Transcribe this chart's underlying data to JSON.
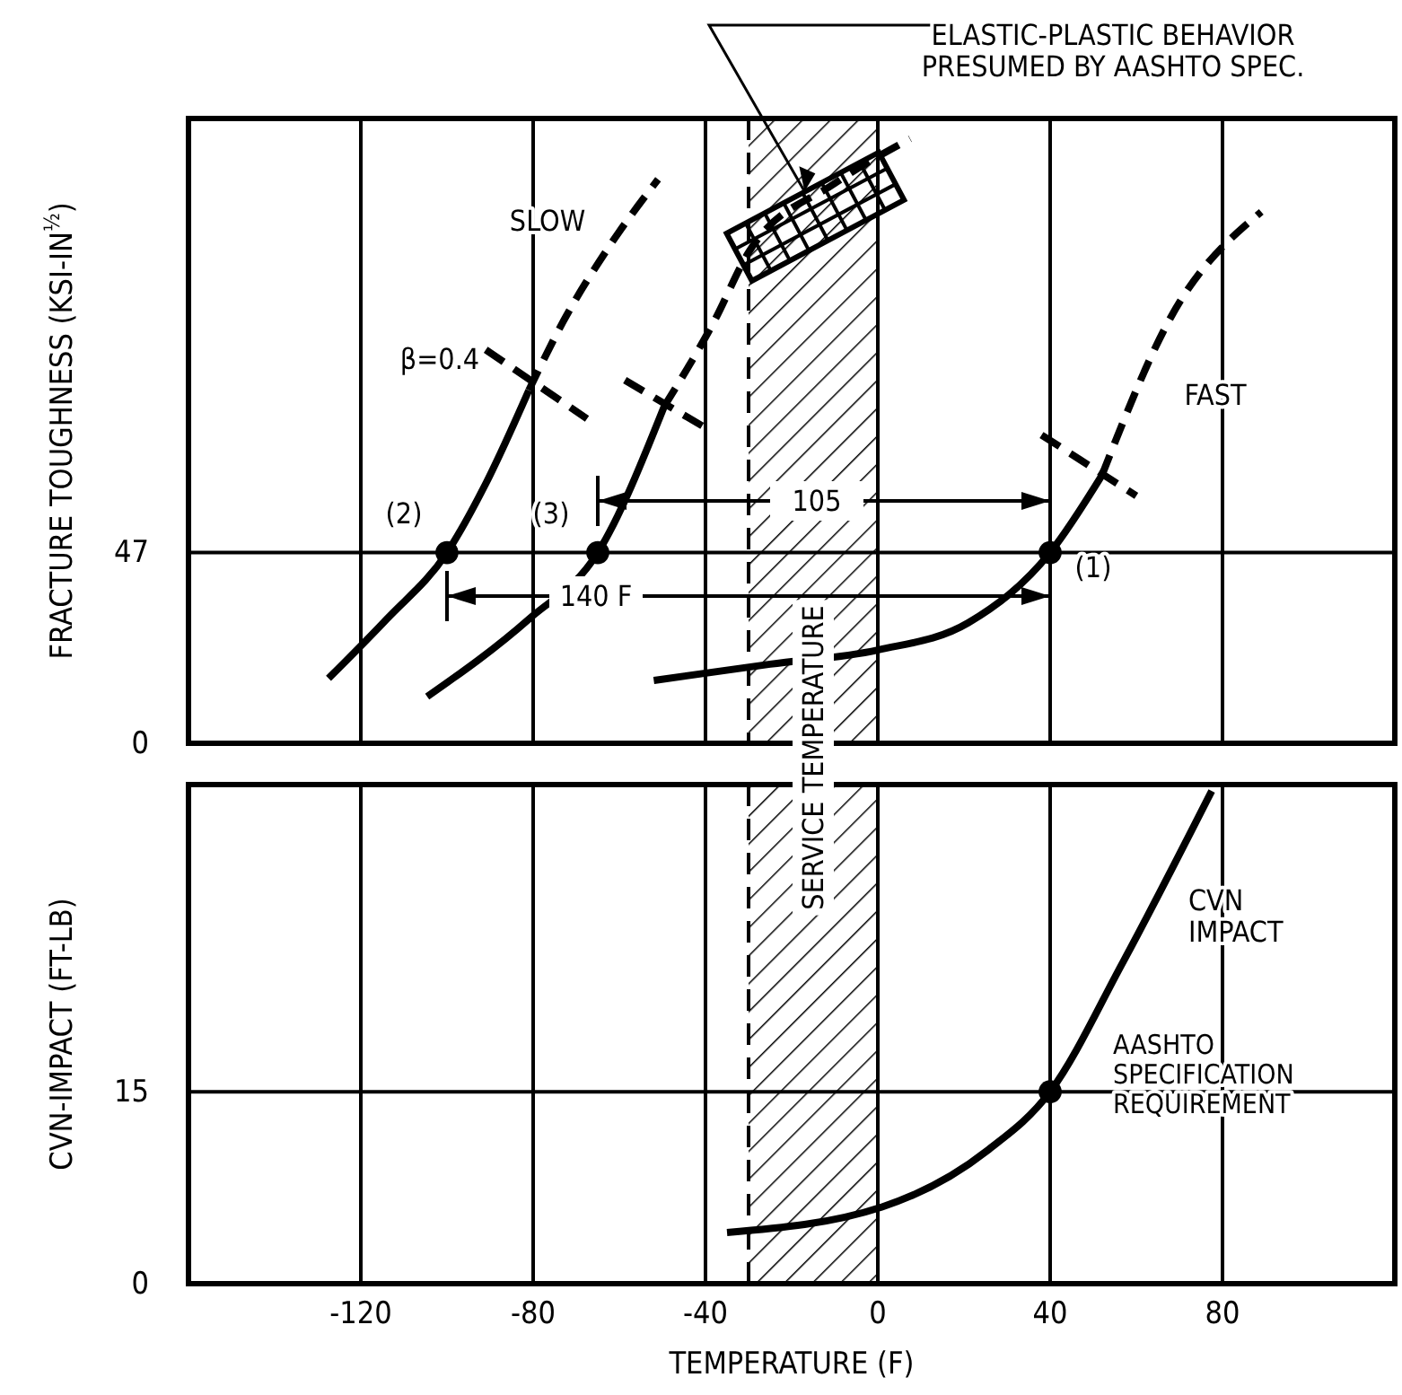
{
  "chart_data": [
    {
      "type": "line",
      "ylabel": "FRACTURE TOUGHNESS (KSI-IN$^{½}$)",
      "xlim": [
        -160,
        120
      ],
      "xticks": [
        -120,
        -80,
        -40,
        0,
        40,
        80
      ],
      "ylim": [
        0,
        154
      ],
      "yticks": [
        0,
        47
      ],
      "grid": "x",
      "tick_labels": "y",
      "ref_lines": [
        {
          "axis": "y",
          "value": 47,
          "color": "#000000",
          "line_style": "solid"
        },
        {
          "axis": "x",
          "value": -30,
          "color": "#000000",
          "line_style": "dashed"
        }
      ],
      "bands": [
        {
          "axis": "x",
          "from": -30,
          "to": 0,
          "label": null,
          "color": "#000000"
        }
      ],
      "series": [
        {
          "type": "line",
          "color": "#000000",
          "line_style": "solid",
          "x": [
            -127.5,
            -114,
            -100,
            -91,
            -81
          ],
          "values": [
            16,
            30.6,
            47,
            64,
            87
          ]
        },
        {
          "type": "line",
          "color": "#000000",
          "line_style": "dashed",
          "x": [
            -81,
            -73,
            -62,
            -51
          ],
          "values": [
            87,
            104,
            123,
            139
          ]
        },
        {
          "type": "line",
          "color": "#000000",
          "line_style": "solid",
          "x": [
            -104.6,
            -81,
            -65,
            -49.6
          ],
          "values": [
            11.5,
            30.6,
            47,
            83
          ]
        },
        {
          "type": "line",
          "color": "#000000",
          "line_style": "dashed",
          "x": [
            -49.6,
            -38,
            -30,
            -10,
            7.5
          ],
          "values": [
            83,
            104,
            121,
            138,
            149
          ]
        },
        {
          "type": "line",
          "color": "#000000",
          "line_style": "solid",
          "x": [
            -52,
            -25,
            0,
            21,
            40,
            52
          ],
          "values": [
            15.5,
            19.5,
            23,
            29.7,
            47,
            66
          ]
        },
        {
          "type": "line",
          "color": "#000000",
          "line_style": "dashed",
          "x": [
            52,
            68,
            89
          ],
          "values": [
            66,
            105,
            131
          ]
        },
        {
          "type": "line",
          "color": "#000000",
          "line_style": "dashed",
          "x": [
            -91,
            -67.5
          ],
          "values": [
            97,
            80
          ]
        },
        {
          "type": "line",
          "color": "#000000",
          "line_style": "dashed",
          "x": [
            -58.7,
            -40.4
          ],
          "values": [
            89.5,
            78
          ]
        },
        {
          "type": "line",
          "color": "#000000",
          "line_style": "dashed",
          "x": [
            38,
            60
          ],
          "values": [
            76,
            61
          ]
        },
        {
          "type": "scatter",
          "color": "#000000",
          "marker": "circle",
          "x": [
            -100,
            -65,
            40
          ],
          "values": [
            47,
            47,
            47
          ]
        }
      ],
      "annotations": [
        "SLOW",
        "β=0.4",
        "FAST",
        {
          "text": "(2)",
          "x": -100,
          "y": 47
        },
        {
          "text": "(3)",
          "x": -65,
          "y": 47
        },
        {
          "text": "(1)",
          "x": 40,
          "y": 47
        },
        "105",
        "140 F",
        {
          "text": "ELASTIC-PLASTIC BEHAVIOR\nPRESUMED BY AASHTO SPEC.",
          "x": -17,
          "y": 136
        }
      ]
    },
    {
      "type": "line",
      "ylabel": "CVN-IMPACT (FT-LB)",
      "xlabel": "TEMPERATURE (F)",
      "xlim": [
        -160,
        120
      ],
      "xticks": [
        -120,
        -80,
        -40,
        0,
        40,
        80
      ],
      "ylim": [
        0,
        39
      ],
      "yticks": [
        0,
        15
      ],
      "grid": "x",
      "ref_lines": [
        {
          "axis": "y",
          "value": 15,
          "color": "#000000",
          "line_style": "solid"
        },
        {
          "axis": "x",
          "value": -30,
          "color": "#000000",
          "line_style": "dashed"
        }
      ],
      "bands": [
        {
          "axis": "x",
          "from": -30,
          "to": 0,
          "label": "SERVICE TEMPERATURE",
          "color": "#000000"
        }
      ],
      "series": [
        {
          "type": "line",
          "color": "#000000",
          "line_style": "solid",
          "x": [
            -35,
            1,
            25.4,
            40,
            56.7,
            77.5
          ],
          "values": [
            4,
            6,
            10.4,
            15,
            25,
            38.5
          ]
        },
        {
          "type": "scatter",
          "color": "#000000",
          "marker": "circle",
          "x": [
            40
          ],
          "values": [
            15
          ]
        }
      ],
      "annotations": [
        "CVN\nIMPACT",
        {
          "text": "AASHTO\nSPECIFICATION\nREQUIREMENT",
          "x": 40,
          "y": 15
        }
      ]
    }
  ]
}
